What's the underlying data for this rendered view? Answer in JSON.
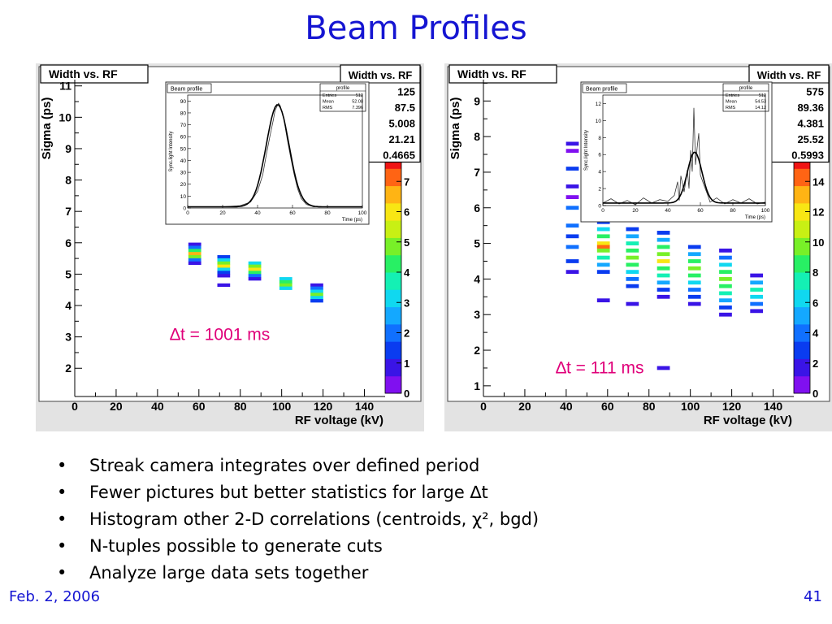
{
  "slide": {
    "title": "Beam Profiles",
    "bullets": [
      "Streak camera integrates over defined period",
      "Fewer pictures but better statistics for large ∆t",
      "Histogram other 2-D correlations (centroids, χ², bgd)",
      "N-tuples possible to generate cuts",
      "Analyze large data sets together"
    ],
    "footer_date": "Feb. 2, 2006",
    "page_number": "41"
  },
  "colors": {
    "title": "#1515d2",
    "annotation": "#e0007a",
    "panel_bg": "#e3e3e3",
    "palette": [
      "#8010f0",
      "#3a14e6",
      "#0a3cf0",
      "#1070ff",
      "#14a8ff",
      "#10d8f0",
      "#14f0b4",
      "#28f064",
      "#78f028",
      "#c8f014",
      "#f8e614",
      "#ffb414",
      "#ff6414",
      "#f01414"
    ]
  },
  "chart_data": [
    {
      "type": "heatmap",
      "title": "Width vs. RF",
      "xlabel": "RF voltage (kV)",
      "ylabel": "Sigma (ps)",
      "xlim": [
        0,
        150
      ],
      "ylim": [
        1.1,
        11.2
      ],
      "xticks": [
        "0",
        "20",
        "40",
        "60",
        "80",
        "100",
        "120",
        "140"
      ],
      "yticks": [
        "2",
        "3",
        "4",
        "5",
        "6",
        "7",
        "8",
        "9",
        "10",
        "11"
      ],
      "annotation": "∆t = 1001 ms",
      "stats_box": {
        "title": "Width vs. RF",
        "values": [
          "125",
          "87.5",
          "5.008",
          "21.21",
          "0.4665"
        ]
      },
      "colorbar": {
        "ticks": [
          "0",
          "1",
          "2",
          "3",
          "4",
          "5",
          "6",
          "7"
        ],
        "zmax": 8
      },
      "columns": [
        {
          "x": 58,
          "cells": [
            [
              5.95,
              0.8
            ],
            [
              5.85,
              2
            ],
            [
              5.75,
              4
            ],
            [
              5.65,
              6.5
            ],
            [
              5.55,
              5
            ],
            [
              5.45,
              2
            ],
            [
              5.35,
              1
            ]
          ]
        },
        {
          "x": 72,
          "cells": [
            [
              5.55,
              1.5
            ],
            [
              5.45,
              3
            ],
            [
              5.35,
              5
            ],
            [
              5.25,
              6
            ],
            [
              5.15,
              3
            ],
            [
              5.05,
              1.5
            ],
            [
              4.95,
              0.8
            ],
            [
              4.65,
              1
            ]
          ]
        },
        {
          "x": 87,
          "cells": [
            [
              5.35,
              3
            ],
            [
              5.25,
              5
            ],
            [
              5.15,
              6
            ],
            [
              5.05,
              4
            ],
            [
              4.95,
              2
            ],
            [
              4.85,
              1
            ]
          ]
        },
        {
          "x": 102,
          "cells": [
            [
              4.85,
              3
            ],
            [
              4.75,
              4.5
            ],
            [
              4.65,
              5
            ],
            [
              4.55,
              3
            ]
          ]
        },
        {
          "x": 117,
          "cells": [
            [
              4.65,
              1
            ],
            [
              4.55,
              2
            ],
            [
              4.45,
              3
            ],
            [
              4.35,
              5
            ],
            [
              4.25,
              3
            ],
            [
              4.15,
              1.5
            ]
          ]
        }
      ],
      "inset": {
        "title": "Beam profile",
        "xlabel": "Time (ps)",
        "ylabel": "Sync.light Intensity",
        "xlim": [
          0,
          100
        ],
        "ylim": [
          0,
          95
        ],
        "xticks": [
          "0",
          "20",
          "40",
          "60",
          "80",
          "100"
        ],
        "yticks": [
          "0",
          "10",
          "20",
          "30",
          "40",
          "50",
          "60",
          "70",
          "80",
          "90"
        ],
        "stats": {
          "title": "profile",
          "labels": [
            "Entries",
            "Mean",
            "RMS"
          ],
          "values": [
            "512",
            "52.08",
            "7.396"
          ]
        },
        "fit": {
          "mean": 51.5,
          "sigma": 6.5,
          "amplitude": 86,
          "baseline": 1
        },
        "data_points": [
          [
            0,
            1
          ],
          [
            10,
            1
          ],
          [
            20,
            1
          ],
          [
            30,
            2
          ],
          [
            36,
            5
          ],
          [
            40,
            14
          ],
          [
            43,
            28
          ],
          [
            45,
            45
          ],
          [
            47,
            60
          ],
          [
            49,
            74
          ],
          [
            50,
            82
          ],
          [
            51,
            85
          ],
          [
            52,
            88
          ],
          [
            53,
            86
          ],
          [
            54,
            80
          ],
          [
            55,
            75
          ],
          [
            57,
            58
          ],
          [
            59,
            42
          ],
          [
            61,
            28
          ],
          [
            63,
            16
          ],
          [
            65,
            8
          ],
          [
            68,
            3
          ],
          [
            72,
            1
          ],
          [
            80,
            1
          ],
          [
            90,
            1
          ],
          [
            100,
            1
          ]
        ]
      }
    },
    {
      "type": "heatmap",
      "title": "Width vs. RF",
      "xlabel": "RF voltage (kV)",
      "ylabel": "Sigma (ps)",
      "xlim": [
        0,
        150
      ],
      "ylim": [
        0.7,
        9.6
      ],
      "xticks": [
        "0",
        "20",
        "40",
        "60",
        "80",
        "100",
        "120",
        "140"
      ],
      "yticks": [
        "1",
        "2",
        "3",
        "4",
        "5",
        "6",
        "7",
        "8",
        "9"
      ],
      "annotation": "∆t = 111 ms",
      "stats_box": {
        "title": "Width vs. RF",
        "values": [
          "575",
          "89.36",
          "4.381",
          "25.52",
          "0.5993"
        ]
      },
      "colorbar": {
        "ticks": [
          "0",
          "2",
          "4",
          "6",
          "8",
          "10",
          "12",
          "14"
        ],
        "zmax": 16
      },
      "columns": [
        {
          "x": 43,
          "cells": [
            [
              7.8,
              2
            ],
            [
              7.6,
              1
            ],
            [
              7.1,
              3
            ],
            [
              6.6,
              2
            ],
            [
              6.3,
              1
            ],
            [
              6.0,
              4
            ],
            [
              5.5,
              4
            ],
            [
              5.2,
              3
            ],
            [
              4.9,
              4
            ],
            [
              4.5,
              3
            ],
            [
              4.2,
              2
            ]
          ]
        },
        {
          "x": 58,
          "cells": [
            [
              5.8,
              4
            ],
            [
              5.6,
              3
            ],
            [
              5.4,
              6
            ],
            [
              5.2,
              9
            ],
            [
              5.0,
              12
            ],
            [
              4.9,
              14
            ],
            [
              4.8,
              10
            ],
            [
              4.6,
              7
            ],
            [
              4.4,
              5
            ],
            [
              4.2,
              3
            ],
            [
              3.4,
              2
            ]
          ]
        },
        {
          "x": 72,
          "cells": [
            [
              5.4,
              3
            ],
            [
              5.2,
              5
            ],
            [
              5.0,
              7
            ],
            [
              4.8,
              9
            ],
            [
              4.6,
              10
            ],
            [
              4.4,
              8
            ],
            [
              4.2,
              6
            ],
            [
              4.0,
              4
            ],
            [
              3.8,
              3
            ],
            [
              3.3,
              2
            ]
          ]
        },
        {
          "x": 87,
          "cells": [
            [
              5.3,
              3
            ],
            [
              5.1,
              5
            ],
            [
              4.9,
              8
            ],
            [
              4.7,
              10
            ],
            [
              4.5,
              12
            ],
            [
              4.3,
              9
            ],
            [
              4.1,
              7
            ],
            [
              3.9,
              5
            ],
            [
              3.7,
              3
            ],
            [
              3.5,
              2
            ],
            [
              1.5,
              2
            ]
          ]
        },
        {
          "x": 102,
          "cells": [
            [
              4.9,
              3
            ],
            [
              4.7,
              5
            ],
            [
              4.5,
              8
            ],
            [
              4.3,
              10
            ],
            [
              4.1,
              9
            ],
            [
              3.9,
              6
            ],
            [
              3.7,
              4
            ],
            [
              3.5,
              3
            ],
            [
              3.3,
              2
            ]
          ]
        },
        {
          "x": 117,
          "cells": [
            [
              4.8,
              2
            ],
            [
              4.6,
              4
            ],
            [
              4.4,
              6
            ],
            [
              4.2,
              8
            ],
            [
              4.0,
              10
            ],
            [
              3.8,
              9
            ],
            [
              3.6,
              7
            ],
            [
              3.4,
              5
            ],
            [
              3.2,
              3
            ],
            [
              3.0,
              2
            ]
          ]
        },
        {
          "x": 132,
          "cells": [
            [
              4.1,
              2
            ],
            [
              3.9,
              5
            ],
            [
              3.7,
              7
            ],
            [
              3.5,
              6
            ],
            [
              3.3,
              4
            ],
            [
              3.1,
              2
            ]
          ]
        }
      ],
      "inset": {
        "title": "Beam profile",
        "xlabel": "Time (ps)",
        "ylabel": "Sync.light Intensity",
        "xlim": [
          0,
          100
        ],
        "ylim": [
          0,
          13
        ],
        "xticks": [
          "0",
          "20",
          "40",
          "60",
          "80",
          "100"
        ],
        "yticks": [
          "0",
          "2",
          "4",
          "6",
          "8",
          "10",
          "12"
        ],
        "stats": {
          "title": "profile",
          "labels": [
            "Entries",
            "Mean",
            "RMS"
          ],
          "values": [
            "512",
            "54.53",
            "14.12"
          ]
        },
        "fit": {
          "mean": 56.5,
          "sigma": 4.5,
          "amplitude": 6,
          "baseline": 0.3
        },
        "data_points": [
          [
            0,
            0.3
          ],
          [
            5,
            0.8
          ],
          [
            10,
            0.2
          ],
          [
            15,
            0.6
          ],
          [
            20,
            0.1
          ],
          [
            25,
            0.9
          ],
          [
            30,
            0.3
          ],
          [
            35,
            0.7
          ],
          [
            40,
            0.5
          ],
          [
            44,
            1.2
          ],
          [
            46,
            2.8
          ],
          [
            47,
            0.6
          ],
          [
            48,
            3.5
          ],
          [
            50,
            1.6
          ],
          [
            52,
            4.2
          ],
          [
            53,
            2
          ],
          [
            54,
            6.5
          ],
          [
            55,
            4
          ],
          [
            56,
            11.5
          ],
          [
            57,
            4.8
          ],
          [
            58,
            6.8
          ],
          [
            59,
            8.5
          ],
          [
            60,
            3.6
          ],
          [
            62,
            2.5
          ],
          [
            64,
            1.5
          ],
          [
            66,
            0.4
          ],
          [
            70,
            0.9
          ],
          [
            75,
            0.2
          ],
          [
            80,
            0.7
          ],
          [
            85,
            0.3
          ],
          [
            90,
            0.8
          ],
          [
            95,
            0.2
          ],
          [
            100,
            0.4
          ]
        ]
      }
    }
  ]
}
